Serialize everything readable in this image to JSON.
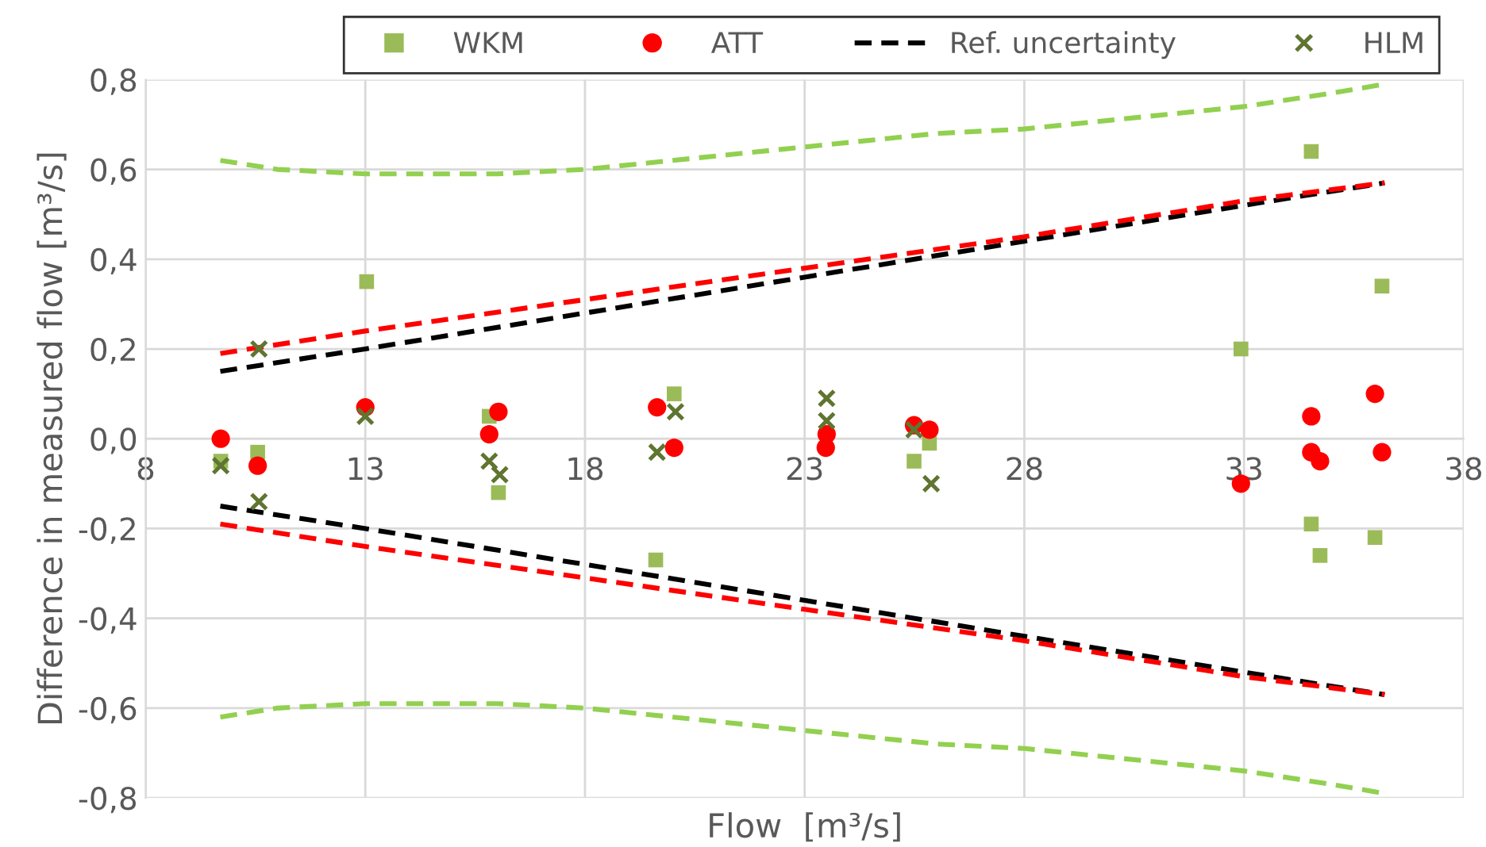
{
  "chart_data": {
    "type": "scatter",
    "xlabel": "Flow  [m³/s]",
    "ylabel": "Difference in measured flow [m³/s]",
    "xlim": [
      8,
      38
    ],
    "xticks": [
      8,
      13,
      18,
      23,
      28,
      33,
      38
    ],
    "ylim": [
      -0.8,
      0.8
    ],
    "yticks": [
      {
        "value": -0.8,
        "label": "-0,8"
      },
      {
        "value": -0.6,
        "label": "-0,6"
      },
      {
        "value": -0.4,
        "label": "-0,4"
      },
      {
        "value": -0.2,
        "label": "-0,2"
      },
      {
        "value": 0,
        "label": "0,0"
      },
      {
        "value": 0.2,
        "label": "0,2"
      },
      {
        "value": 0.4,
        "label": "0,4"
      },
      {
        "value": 0.6,
        "label": "0,6"
      },
      {
        "value": 0.8,
        "label": "0,8"
      }
    ],
    "grid": true,
    "legend": "top",
    "series": [
      {
        "name": "WKM",
        "marker": "square",
        "color": "#9bbb59",
        "x": [
          9.71,
          10.55,
          13.03,
          15.82,
          16.03,
          19.61,
          20.03,
          25.49,
          25.84,
          32.93,
          34.53,
          34.53,
          34.73,
          35.98,
          36.14
        ],
        "values": [
          -0.05,
          -0.03,
          0.35,
          0.05,
          -0.12,
          -0.27,
          0.1,
          -0.05,
          -0.01,
          0.2,
          0.64,
          -0.19,
          -0.26,
          -0.22,
          0.34
        ]
      },
      {
        "name": "ATT",
        "marker": "circle",
        "color": "#ff0000",
        "x": [
          9.71,
          10.55,
          13.0,
          15.82,
          16.03,
          19.64,
          20.03,
          23.5,
          23.48,
          25.49,
          25.84,
          32.93,
          34.53,
          34.53,
          34.73,
          35.98,
          36.14
        ],
        "values": [
          0.0,
          -0.06,
          0.07,
          0.01,
          0.06,
          0.07,
          -0.02,
          0.01,
          -0.02,
          0.03,
          0.02,
          -0.1,
          0.05,
          -0.03,
          -0.05,
          0.1,
          -0.03
        ]
      },
      {
        "name": "Ref. uncertainty",
        "type": "line",
        "line_style": "dashed",
        "color": "#000000",
        "x": [
          9.7,
          13,
          18,
          23,
          28,
          33,
          36.2
        ],
        "values": [
          0.15,
          0.2,
          0.28,
          0.36,
          0.44,
          0.52,
          0.57
        ]
      },
      {
        "name": "HLM",
        "marker": "cross",
        "color": "#5f7530",
        "x": [
          9.71,
          10.58,
          10.58,
          13.0,
          15.82,
          16.06,
          19.64,
          20.06,
          23.5,
          23.5,
          25.49,
          25.88
        ],
        "values": [
          -0.06,
          0.2,
          -0.14,
          0.05,
          -0.05,
          -0.08,
          -0.03,
          0.06,
          0.09,
          0.04,
          0.02,
          -0.1
        ]
      },
      {
        "type": "line",
        "line_style": "dashed",
        "color": "#000000",
        "x": [
          9.7,
          13,
          18,
          23,
          28,
          33,
          36.2
        ],
        "values": [
          -0.15,
          -0.2,
          -0.28,
          -0.36,
          -0.44,
          -0.52,
          -0.57
        ]
      },
      {
        "type": "line",
        "line_style": "dashed",
        "color": "#ff0000",
        "x": [
          9.7,
          13,
          18,
          23,
          28,
          33,
          36.2
        ],
        "values": [
          0.19,
          0.24,
          0.31,
          0.38,
          0.45,
          0.53,
          0.57
        ]
      },
      {
        "type": "line",
        "line_style": "dashed",
        "color": "#ff0000",
        "x": [
          9.7,
          13,
          18,
          23,
          28,
          33,
          36.2
        ],
        "values": [
          -0.19,
          -0.24,
          -0.31,
          -0.38,
          -0.45,
          -0.53,
          -0.57
        ]
      },
      {
        "type": "line",
        "line_style": "dashed",
        "color": "#92d050",
        "x": [
          9.7,
          11,
          13,
          16,
          18,
          20,
          23,
          26,
          28,
          30,
          33,
          35,
          36.2
        ],
        "values": [
          0.62,
          0.6,
          0.59,
          0.59,
          0.6,
          0.62,
          0.65,
          0.68,
          0.69,
          0.71,
          0.74,
          0.77,
          0.79
        ]
      },
      {
        "type": "line",
        "line_style": "dashed",
        "color": "#92d050",
        "x": [
          9.7,
          11,
          13,
          16,
          18,
          20,
          23,
          26,
          28,
          30,
          33,
          35,
          36.2
        ],
        "values": [
          -0.62,
          -0.6,
          -0.59,
          -0.59,
          -0.6,
          -0.62,
          -0.65,
          -0.68,
          -0.69,
          -0.71,
          -0.74,
          -0.77,
          -0.79
        ]
      }
    ]
  }
}
